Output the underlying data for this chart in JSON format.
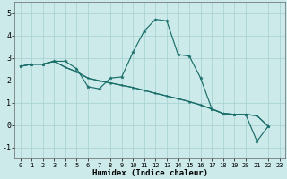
{
  "xlabel": "Humidex (Indice chaleur)",
  "bg_color": "#cceaea",
  "grid_color": "#aad4d4",
  "line_color": "#1a6e6a",
  "xlim": [
    -0.5,
    23.5
  ],
  "ylim": [
    -1.5,
    5.5
  ],
  "xticks": [
    0,
    1,
    2,
    3,
    4,
    5,
    6,
    7,
    8,
    9,
    10,
    11,
    12,
    13,
    14,
    15,
    16,
    17,
    18,
    19,
    20,
    21,
    22,
    23
  ],
  "yticks": [
    -1,
    0,
    1,
    2,
    3,
    4,
    5
  ],
  "series1_x": [
    0,
    1,
    2,
    3,
    4,
    5,
    6,
    7,
    8,
    9,
    10,
    11,
    12,
    13,
    14,
    15,
    16,
    17,
    18,
    19,
    20,
    21,
    22,
    23
  ],
  "series1_y": [
    2.62,
    2.72,
    2.72,
    2.85,
    2.85,
    2.52,
    1.72,
    1.62,
    2.1,
    2.15,
    3.25,
    4.2,
    4.72,
    4.65,
    3.15,
    3.08,
    2.1,
    0.72,
    0.52,
    0.48,
    0.48,
    -0.72,
    -0.05,
    null
  ],
  "series2_x": [
    0,
    1,
    2,
    3,
    4,
    5,
    6,
    7,
    8,
    9,
    10,
    11,
    12,
    13,
    14,
    15,
    16,
    17,
    18,
    19,
    20,
    21,
    22,
    23
  ],
  "series2_y": [
    2.62,
    2.72,
    2.72,
    2.85,
    2.58,
    2.38,
    2.1,
    1.98,
    1.88,
    1.78,
    1.68,
    1.55,
    1.42,
    1.3,
    1.18,
    1.05,
    0.9,
    0.72,
    0.52,
    0.48,
    0.48,
    0.42,
    -0.05,
    null
  ],
  "series3_x": [
    0,
    1,
    2,
    3,
    4,
    5,
    6,
    7,
    8,
    9,
    10,
    11,
    12,
    13,
    14,
    15,
    16,
    17,
    18,
    19,
    20,
    21,
    22,
    23
  ],
  "series3_y": [
    2.62,
    2.72,
    2.72,
    2.85,
    2.58,
    2.38,
    2.1,
    1.98,
    1.88,
    1.78,
    1.68,
    1.55,
    1.42,
    1.3,
    1.18,
    1.05,
    0.9,
    0.72,
    0.52,
    0.48,
    0.48,
    0.42,
    -0.05,
    null
  ]
}
